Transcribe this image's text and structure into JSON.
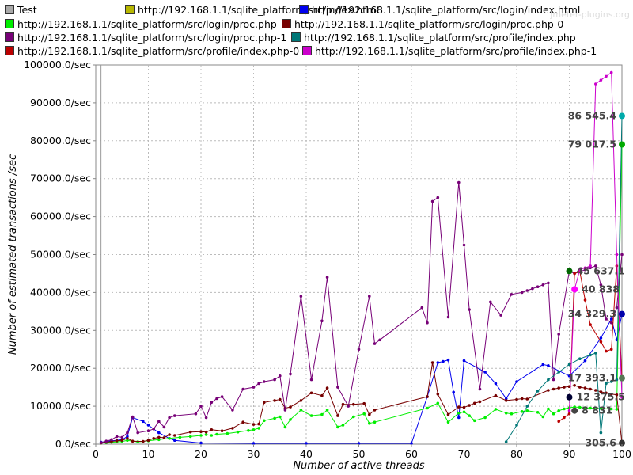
{
  "chart_data": {
    "type": "line",
    "watermark": "jmeter-plugins.org",
    "xlabel": "Number of active threads",
    "ylabel": "Number of estimated transactions /sec",
    "xlim": [
      0,
      100
    ],
    "ylim": [
      0,
      100000
    ],
    "x_ticks": [
      0,
      10,
      20,
      30,
      40,
      50,
      60,
      70,
      80,
      90,
      100
    ],
    "y_ticks": [
      0,
      10000,
      20000,
      30000,
      40000,
      50000,
      60000,
      70000,
      80000,
      90000,
      100000
    ],
    "y_tick_labels": [
      "0.0/sec",
      "10000.0/sec",
      "20000.0/sec",
      "30000.0/sec",
      "40000.0/sec",
      "50000.0/sec",
      "60000.0/sec",
      "70000.0/sec",
      "80000.0/sec",
      "90000.0/sec",
      "100000.0/sec"
    ],
    "grid": true,
    "legend_position": "top",
    "series": [
      {
        "name": "Test",
        "color": "#aaaaaa",
        "points": []
      },
      {
        "name": "http://192.168.1.1/sqlite_platform/src/index.html",
        "color": "#b7b700",
        "points": []
      },
      {
        "name": "http://192.168.1.1/sqlite_platform/src/login/index.html",
        "color": "#0000ee",
        "points": [
          [
            1,
            500
          ],
          [
            2,
            700
          ],
          [
            3,
            900
          ],
          [
            4,
            1000
          ],
          [
            5,
            1200
          ],
          [
            6,
            2000
          ],
          [
            7,
            7000
          ],
          [
            9,
            6000
          ],
          [
            10,
            5000
          ],
          [
            12,
            3000
          ],
          [
            14,
            1500
          ],
          [
            15,
            1000
          ],
          [
            20,
            300
          ],
          [
            30,
            200
          ],
          [
            40,
            200
          ],
          [
            50,
            200
          ],
          [
            60,
            200
          ],
          [
            63,
            12500
          ],
          [
            65,
            21500
          ],
          [
            66,
            21800
          ],
          [
            67,
            22200
          ],
          [
            68,
            13700
          ],
          [
            69,
            7000
          ],
          [
            70,
            22000
          ],
          [
            74,
            19000
          ],
          [
            76,
            16000
          ],
          [
            78,
            12000
          ],
          [
            80,
            16500
          ],
          [
            85,
            21000
          ],
          [
            86,
            20700
          ],
          [
            90,
            18000
          ],
          [
            93,
            22000
          ],
          [
            96,
            28000
          ],
          [
            98,
            33000
          ],
          [
            99,
            27500
          ],
          [
            100,
            34300
          ]
        ]
      },
      {
        "name": "http://192.168.1.1/sqlite_platform/src/login/proc.php",
        "color": "#00ee00",
        "points": [
          [
            1,
            300
          ],
          [
            2,
            400
          ],
          [
            3,
            500
          ],
          [
            4,
            600
          ],
          [
            5,
            700
          ],
          [
            6,
            1000
          ],
          [
            8,
            600
          ],
          [
            10,
            900
          ],
          [
            12,
            1200
          ],
          [
            14,
            1500
          ],
          [
            16,
            1800
          ],
          [
            18,
            2000
          ],
          [
            20,
            2300
          ],
          [
            21,
            2500
          ],
          [
            22,
            2300
          ],
          [
            23,
            2600
          ],
          [
            25,
            2800
          ],
          [
            27,
            3200
          ],
          [
            29,
            3600
          ],
          [
            30,
            3800
          ],
          [
            31,
            4200
          ],
          [
            32,
            6200
          ],
          [
            34,
            6800
          ],
          [
            35,
            7200
          ],
          [
            36,
            4500
          ],
          [
            37,
            6500
          ],
          [
            39,
            9000
          ],
          [
            41,
            7500
          ],
          [
            43,
            7800
          ],
          [
            44,
            9000
          ],
          [
            46,
            4500
          ],
          [
            47,
            5000
          ],
          [
            49,
            7200
          ],
          [
            51,
            8000
          ],
          [
            52,
            5500
          ],
          [
            53,
            5800
          ],
          [
            63,
            9500
          ],
          [
            65,
            10800
          ],
          [
            67,
            5800
          ],
          [
            69,
            8200
          ],
          [
            70,
            8500
          ],
          [
            71,
            7500
          ],
          [
            72,
            6200
          ],
          [
            74,
            7000
          ],
          [
            76,
            9200
          ],
          [
            78,
            8200
          ],
          [
            79,
            8000
          ],
          [
            81,
            8600
          ],
          [
            82,
            8800
          ],
          [
            84,
            8400
          ],
          [
            85,
            7200
          ],
          [
            86,
            9300
          ],
          [
            87,
            8000
          ],
          [
            88,
            8800
          ],
          [
            89,
            9300
          ],
          [
            90,
            9600
          ],
          [
            91,
            9800
          ],
          [
            92,
            9700
          ],
          [
            93,
            9600
          ],
          [
            94,
            9500
          ],
          [
            96,
            9400
          ],
          [
            98,
            9300
          ],
          [
            99,
            9200
          ],
          [
            100,
            79017.5
          ]
        ]
      },
      {
        "name": "http://192.168.1.1/sqlite_platform/src/login/proc.php-0",
        "color": "#770000",
        "points": [
          [
            1,
            300
          ],
          [
            2,
            500
          ],
          [
            3,
            700
          ],
          [
            4,
            900
          ],
          [
            5,
            1000
          ],
          [
            6,
            1500
          ],
          [
            7,
            800
          ],
          [
            9,
            700
          ],
          [
            10,
            1000
          ],
          [
            11,
            1500
          ],
          [
            12,
            1800
          ],
          [
            13,
            1700
          ],
          [
            14,
            2500
          ],
          [
            15,
            2300
          ],
          [
            18,
            3200
          ],
          [
            20,
            3300
          ],
          [
            21,
            3200
          ],
          [
            22,
            3800
          ],
          [
            24,
            3500
          ],
          [
            26,
            4200
          ],
          [
            28,
            5800
          ],
          [
            30,
            5200
          ],
          [
            31,
            5300
          ],
          [
            32,
            11000
          ],
          [
            34,
            11500
          ],
          [
            35,
            11800
          ],
          [
            36,
            9500
          ],
          [
            37,
            9800
          ],
          [
            39,
            11500
          ],
          [
            41,
            13500
          ],
          [
            43,
            12800
          ],
          [
            44,
            14800
          ],
          [
            46,
            7500
          ],
          [
            47,
            10500
          ],
          [
            49,
            10500
          ],
          [
            51,
            10700
          ],
          [
            52,
            7800
          ],
          [
            53,
            9000
          ],
          [
            63,
            12500
          ],
          [
            64,
            21500
          ],
          [
            65,
            13200
          ],
          [
            67,
            7800
          ],
          [
            69,
            9800
          ],
          [
            70,
            9700
          ],
          [
            71,
            10200
          ],
          [
            72,
            10800
          ],
          [
            73,
            11200
          ],
          [
            76,
            12800
          ],
          [
            78,
            11500
          ],
          [
            80,
            11800
          ],
          [
            81,
            12000
          ],
          [
            82,
            11900
          ],
          [
            86,
            14200
          ],
          [
            87,
            14500
          ],
          [
            88,
            14800
          ],
          [
            89,
            15000
          ],
          [
            90,
            15200
          ],
          [
            91,
            15500
          ],
          [
            92,
            15000
          ],
          [
            93,
            14800
          ],
          [
            94,
            14500
          ],
          [
            95,
            14200
          ],
          [
            96,
            13800
          ],
          [
            97,
            13500
          ],
          [
            98,
            13200
          ],
          [
            99,
            13000
          ],
          [
            100,
            305.6
          ]
        ]
      },
      {
        "name": "http://192.168.1.1/sqlite_platform/src/login/proc.php-1",
        "color": "#770077",
        "points": [
          [
            1,
            400
          ],
          [
            2,
            800
          ],
          [
            3,
            1200
          ],
          [
            4,
            2000
          ],
          [
            5,
            1800
          ],
          [
            6,
            3000
          ],
          [
            7,
            7200
          ],
          [
            8,
            3000
          ],
          [
            10,
            3500
          ],
          [
            11,
            4000
          ],
          [
            12,
            6000
          ],
          [
            13,
            4500
          ],
          [
            14,
            7000
          ],
          [
            15,
            7500
          ],
          [
            19,
            8000
          ],
          [
            20,
            10000
          ],
          [
            21,
            7000
          ],
          [
            22,
            11000
          ],
          [
            23,
            12000
          ],
          [
            24,
            12500
          ],
          [
            26,
            9000
          ],
          [
            28,
            14500
          ],
          [
            30,
            15000
          ],
          [
            31,
            16000
          ],
          [
            32,
            16500
          ],
          [
            34,
            17000
          ],
          [
            35,
            18000
          ],
          [
            36,
            9000
          ],
          [
            37,
            18500
          ],
          [
            39,
            39000
          ],
          [
            41,
            17000
          ],
          [
            43,
            32500
          ],
          [
            44,
            44000
          ],
          [
            46,
            15000
          ],
          [
            48,
            10000
          ],
          [
            50,
            25000
          ],
          [
            52,
            39000
          ],
          [
            53,
            26500
          ],
          [
            54,
            27500
          ],
          [
            62,
            36000
          ],
          [
            63,
            32000
          ],
          [
            64,
            64000
          ],
          [
            65,
            65000
          ],
          [
            67,
            33500
          ],
          [
            69,
            69000
          ],
          [
            70,
            52500
          ],
          [
            71,
            35500
          ],
          [
            73,
            14500
          ],
          [
            75,
            37500
          ],
          [
            77,
            34000
          ],
          [
            79,
            39500
          ],
          [
            81,
            40000
          ],
          [
            82,
            40500
          ],
          [
            83,
            41000
          ],
          [
            84,
            41500
          ],
          [
            85,
            42000
          ],
          [
            86,
            42500
          ],
          [
            87,
            17000
          ],
          [
            88,
            29000
          ],
          [
            90,
            45637.1
          ],
          [
            91,
            45000
          ],
          [
            92,
            45500
          ],
          [
            93,
            46000
          ],
          [
            94,
            46500
          ],
          [
            95,
            47000
          ],
          [
            96,
            42000
          ],
          [
            97,
            33000
          ],
          [
            98,
            32000
          ],
          [
            99,
            36000
          ],
          [
            100,
            50000
          ]
        ]
      },
      {
        "name": "http://192.168.1.1/sqlite_platform/src/profile/index.php",
        "color": "#007777",
        "points": [
          [
            78,
            600
          ],
          [
            80,
            5000
          ],
          [
            82,
            10000
          ],
          [
            84,
            14000
          ],
          [
            86,
            17000
          ],
          [
            88,
            19000
          ],
          [
            90,
            21000
          ],
          [
            92,
            22500
          ],
          [
            94,
            23500
          ],
          [
            95,
            24000
          ],
          [
            96,
            3000
          ],
          [
            97,
            16000
          ],
          [
            98,
            16500
          ],
          [
            99,
            17000
          ],
          [
            100,
            86545.4
          ]
        ]
      },
      {
        "name": "http://192.168.1.1/sqlite_platform/src/profile/index.php-0",
        "color": "#bb0000",
        "points": [
          [
            88,
            6000
          ],
          [
            89,
            7000
          ],
          [
            90,
            8000
          ],
          [
            91,
            45000
          ],
          [
            92,
            45500
          ],
          [
            93,
            38000
          ],
          [
            94,
            31500
          ],
          [
            96,
            27000
          ],
          [
            97,
            24500
          ],
          [
            98,
            25000
          ],
          [
            99,
            47000
          ],
          [
            100,
            17393.1
          ]
        ]
      },
      {
        "name": "http://192.168.1.1/sqlite_platform/src/profile/index.php-1",
        "color": "#cc00cc",
        "points": [
          [
            90,
            8831
          ],
          [
            91,
            40838
          ],
          [
            92,
            46000
          ],
          [
            93,
            46500
          ],
          [
            94,
            47000
          ],
          [
            95,
            95000
          ],
          [
            96,
            96000
          ],
          [
            97,
            97000
          ],
          [
            98,
            98000
          ],
          [
            99,
            50000
          ],
          [
            100,
            12375.5
          ]
        ]
      }
    ],
    "annotations": [
      {
        "text": "86 545.4",
        "x": 100,
        "y": 86545.4,
        "color": "#00aaaa"
      },
      {
        "text": "79 017.5",
        "x": 100,
        "y": 79017.5,
        "color": "#00aa00"
      },
      {
        "text": "45 637.1",
        "x": 90,
        "y": 45637.1,
        "color": "#006600"
      },
      {
        "text": "40 838",
        "x": 91,
        "y": 40838,
        "color": "#ff00ff"
      },
      {
        "text": "34 329.3",
        "x": 100,
        "y": 34329.3,
        "color": "#0000aa"
      },
      {
        "text": "17 393.1",
        "x": 100,
        "y": 17393.1,
        "color": "#557755"
      },
      {
        "text": "12 375.5",
        "x": 90,
        "y": 12375.5,
        "color": "#000033"
      },
      {
        "text": "8 831",
        "x": 91,
        "y": 8831,
        "color": "#444444"
      },
      {
        "text": "305.6",
        "x": 100,
        "y": 305.6,
        "color": "#333333"
      }
    ]
  }
}
